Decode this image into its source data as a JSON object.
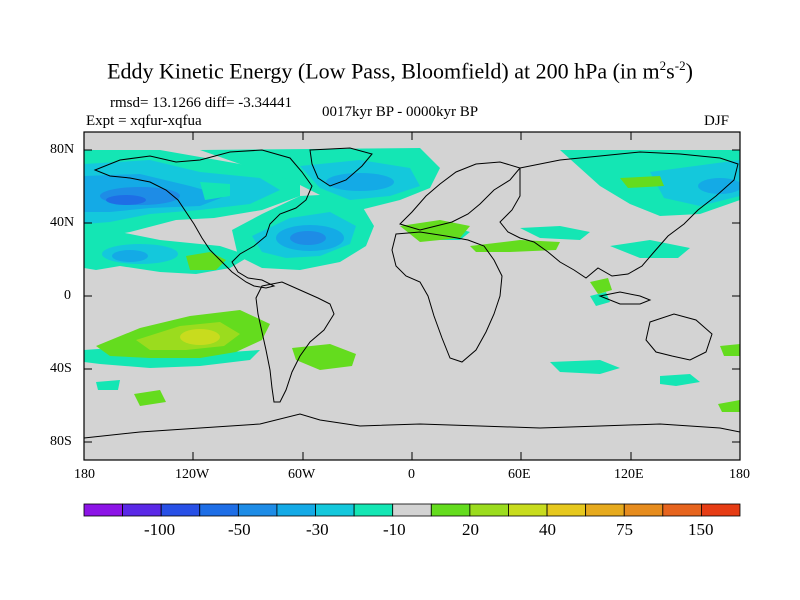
{
  "title": {
    "prefix": "Eddy Kinetic Energy (Low Pass, Bloomfield) at 200 hPa (in m",
    "sup1": "2",
    "mid": "s",
    "sup2": "-2",
    "suffix": ")"
  },
  "stats": {
    "rmsd": "rmsd= 13.1266 diff= -3.34441",
    "expt": "Expt = xqfur-xqfua",
    "period": "0017kyr BP - 0000kyr BP",
    "season": "DJF"
  },
  "axes": {
    "y_ticks": [
      "80N",
      "40N",
      "0",
      "40S",
      "80S"
    ],
    "x_ticks": [
      "180",
      "120W",
      "60W",
      "0",
      "60E",
      "120E",
      "180"
    ]
  },
  "colors": {
    "land_bg": "#d3d3d3",
    "coast": "#000000"
  },
  "colorbar": {
    "colors": [
      "#8c14e6",
      "#5a28e6",
      "#2850e6",
      "#1e6ee6",
      "#1e8ce6",
      "#14aae6",
      "#14c8dc",
      "#14e6b4",
      "#d3d3d3",
      "#64dc1e",
      "#9bdc1e",
      "#c8dc1e",
      "#e6c81e",
      "#e6aa1e",
      "#e68c1e",
      "#e6641e",
      "#e63c14"
    ],
    "labels": [
      "-100",
      "-50",
      "-30",
      "-10",
      "20",
      "40",
      "75",
      "150"
    ]
  }
}
